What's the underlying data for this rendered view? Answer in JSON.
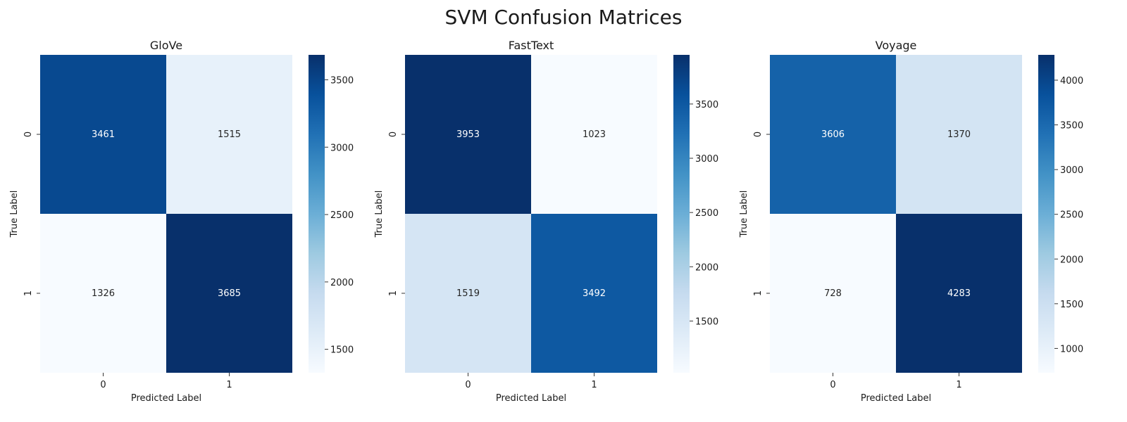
{
  "figure": {
    "title": "SVM Confusion Matrices"
  },
  "chart_data": [
    {
      "type": "heatmap",
      "title": "GloVe",
      "xlabel": "Predicted Label",
      "ylabel": "True Label",
      "x_ticks": [
        "0",
        "1"
      ],
      "y_ticks": [
        "0",
        "1"
      ],
      "matrix": [
        [
          3461,
          1515
        ],
        [
          1326,
          3685
        ]
      ],
      "colormap": "Blues",
      "colorbar": {
        "vmin": 1326,
        "vmax": 3685,
        "ticks": [
          1500,
          2000,
          2500,
          3000,
          3500
        ]
      }
    },
    {
      "type": "heatmap",
      "title": "FastText",
      "xlabel": "Predicted Label",
      "ylabel": "True Label",
      "x_ticks": [
        "0",
        "1"
      ],
      "y_ticks": [
        "0",
        "1"
      ],
      "matrix": [
        [
          3953,
          1023
        ],
        [
          1519,
          3492
        ]
      ],
      "colormap": "Blues",
      "colorbar": {
        "vmin": 1023,
        "vmax": 3953,
        "ticks": [
          1500,
          2000,
          2500,
          3000,
          3500
        ]
      }
    },
    {
      "type": "heatmap",
      "title": "Voyage",
      "xlabel": "Predicted Label",
      "ylabel": "True Label",
      "x_ticks": [
        "0",
        "1"
      ],
      "y_ticks": [
        "0",
        "1"
      ],
      "matrix": [
        [
          3606,
          1370
        ],
        [
          728,
          4283
        ]
      ],
      "colormap": "Blues",
      "colorbar": {
        "vmin": 728,
        "vmax": 4283,
        "ticks": [
          1000,
          1500,
          2000,
          2500,
          3000,
          3500,
          4000
        ]
      }
    }
  ]
}
